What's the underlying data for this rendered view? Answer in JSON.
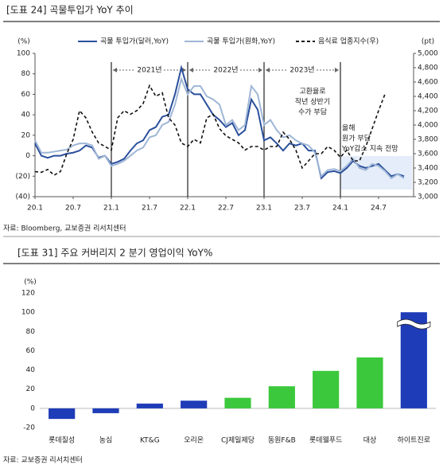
{
  "chart_data": [
    {
      "type": "line",
      "title": "[도표 24] 곡물투입가 YoY 추이",
      "y_unit": "(%)",
      "y2_unit": "(pt)",
      "categories": [
        "20.1",
        null,
        null,
        null,
        null,
        null,
        "20.7",
        null,
        null,
        null,
        null,
        null,
        "21.1",
        null,
        null,
        null,
        null,
        null,
        "21.7",
        null,
        null,
        null,
        null,
        null,
        "22.1",
        null,
        null,
        null,
        null,
        null,
        "22.7",
        null,
        null,
        null,
        null,
        null,
        "23.1",
        null,
        null,
        null,
        null,
        null,
        "23.7",
        null,
        null,
        null,
        null,
        null,
        "24.1",
        null,
        null,
        null,
        null,
        null,
        "24.7",
        null,
        null,
        null,
        null
      ],
      "series": [
        {
          "name": "곡물 투입가(달러,YoY)",
          "color": "#2a4f9c",
          "values": [
            12,
            0,
            -2,
            0,
            0,
            2,
            3,
            5,
            10,
            8,
            -2,
            0,
            -8,
            -6,
            -3,
            5,
            12,
            15,
            25,
            28,
            38,
            40,
            60,
            86,
            65,
            60,
            60,
            50,
            40,
            35,
            28,
            32,
            20,
            25,
            55,
            45,
            15,
            18,
            12,
            5,
            12,
            10,
            12,
            5,
            5,
            -22,
            -16,
            -15,
            -17,
            -12,
            -5,
            -10,
            -12,
            -10,
            -8,
            -14,
            -20,
            -18,
            -20
          ]
        },
        {
          "name": "곡물 투입가(원화,YoY)",
          "color": "#9fb6d6",
          "values": [
            15,
            3,
            3,
            4,
            5,
            6,
            10,
            12,
            12,
            10,
            -3,
            0,
            -10,
            -8,
            -5,
            0,
            5,
            8,
            18,
            20,
            30,
            33,
            50,
            75,
            60,
            68,
            68,
            58,
            55,
            50,
            30,
            35,
            25,
            30,
            68,
            60,
            30,
            35,
            25,
            18,
            20,
            15,
            12,
            10,
            3,
            -20,
            -14,
            -13,
            -15,
            -10,
            -3,
            -12,
            -14,
            -8,
            -10,
            -15,
            -22,
            -18,
            -22
          ]
        },
        {
          "name": "음식료 업종지수(우)",
          "color": "#111111",
          "dashed": true,
          "axis": "y2",
          "values": [
            3350,
            3340,
            3380,
            3300,
            3350,
            3600,
            3800,
            4200,
            4100,
            3900,
            3750,
            3700,
            3650,
            4100,
            4200,
            4150,
            4200,
            4300,
            4550,
            4400,
            4450,
            4100,
            4000,
            3750,
            3700,
            3800,
            3750,
            4100,
            4150,
            3950,
            3850,
            3800,
            3750,
            3650,
            3700,
            3700,
            3650,
            3700,
            3700,
            3900,
            3800,
            3650,
            3400,
            3500,
            3600,
            3600,
            3700,
            3650,
            3550,
            3650,
            3500,
            3500,
            3700,
            3950,
            4200,
            4430,
            null,
            null,
            null
          ]
        }
      ],
      "ylim": [
        -40,
        100
      ],
      "yticks": [
        {
          "value": -40,
          "label": "(40)"
        },
        {
          "value": -20,
          "label": "(20)"
        },
        0,
        20,
        40,
        60,
        80,
        100
      ],
      "y2lim": [
        3000,
        5000
      ],
      "y2ticks": [
        {
          "value": 3000,
          "label": "3,000"
        },
        {
          "value": 3200,
          "label": "3,200"
        },
        {
          "value": 3400,
          "label": "3,400"
        },
        {
          "value": 3600,
          "label": "3,600"
        },
        {
          "value": 3800,
          "label": "3,800"
        },
        {
          "value": 4000,
          "label": "4,000"
        },
        {
          "value": 4200,
          "label": "4,200"
        },
        {
          "value": 4400,
          "label": "4,400"
        },
        {
          "value": 4600,
          "label": "4,600"
        },
        {
          "value": 4800,
          "label": "4,800"
        },
        {
          "value": 5000,
          "label": "5,000"
        }
      ],
      "grid": false,
      "legend": "top",
      "period_labels": [
        "2021년",
        "2022년",
        "2023년"
      ],
      "annotations": [
        [
          "고환율로",
          "작년 상반기",
          "수가 부담"
        ],
        [
          "올해",
          "원가 부담",
          "YoY감소 지속 전망"
        ]
      ],
      "source": "자료: Bloomberg, 교보증권 리서치센터"
    },
    {
      "type": "bar",
      "title": "[도표 31] 주요 커버리지 2 분기 영업이익 YoY%",
      "y_unit": "(%)",
      "categories": [
        "롯데칠성",
        "농심",
        "KT&G",
        "오리온",
        "CJ제일제당",
        "동원F&B",
        "롯데웰푸드",
        "대상",
        "하이트진로"
      ],
      "values": [
        -11,
        -5,
        5,
        8,
        11,
        23,
        39,
        53,
        100
      ],
      "colors": [
        "#1f3cb8",
        "#1f3cb8",
        "#1f3cb8",
        "#1f3cb8",
        "#3cc83c",
        "#3cc83c",
        "#3cc83c",
        "#3cc83c",
        "#1f3cb8"
      ],
      "ylim": [
        -20,
        120
      ],
      "yticks": [
        -20,
        0,
        20,
        40,
        60,
        80,
        100,
        120
      ],
      "grid": false,
      "source": "자료: 교보증권 리서치센터"
    }
  ]
}
